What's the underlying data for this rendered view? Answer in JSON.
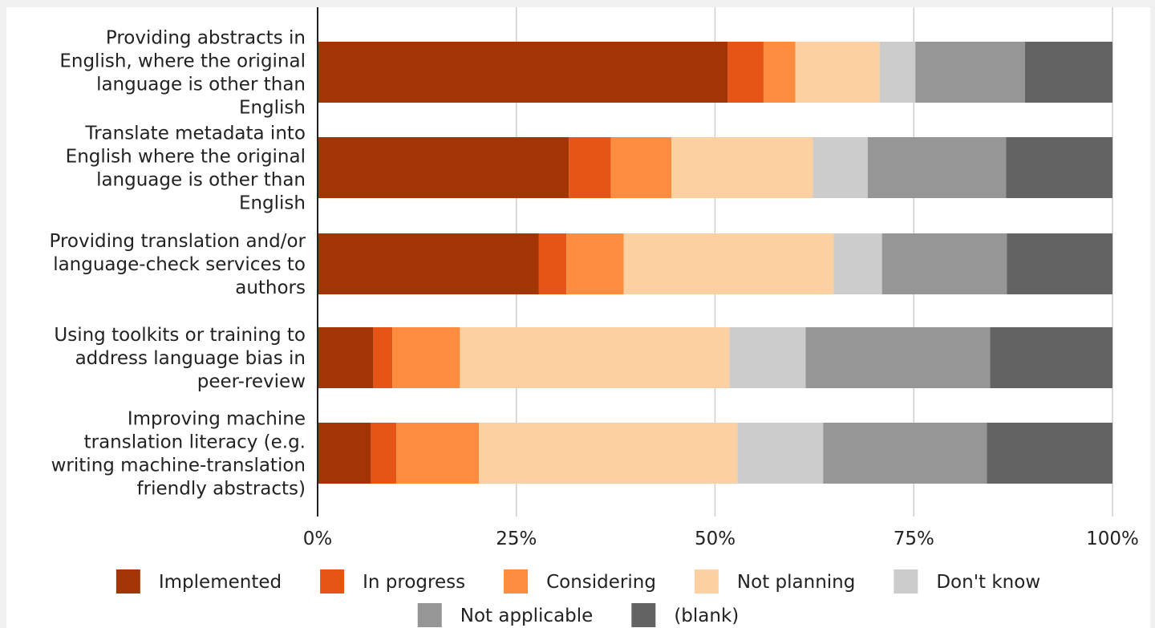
{
  "chart_data": {
    "type": "bar",
    "orientation": "horizontal",
    "stacked": true,
    "normalized": true,
    "title": "",
    "xlabel": "",
    "ylabel": "",
    "xlim": [
      0,
      100
    ],
    "grid": true,
    "legend_position": "bottom",
    "x_ticks": [
      "0%",
      "25%",
      "50%",
      "75%",
      "100%"
    ],
    "x_tick_values": [
      0,
      25,
      50,
      75,
      100
    ],
    "categories": [
      "Providing abstracts in English, where the original language is other than English",
      "Translate metadata into English where the original language is other than English",
      "Providing translation and/or language-check services to authors",
      "Using toolkits or training to address language bias in peer-review",
      "Improving machine translation literacy (e.g. writing machine-translation friendly abstracts)"
    ],
    "category_lines": [
      [
        "Providing abstracts in",
        "English, where the original",
        "language is other than",
        "English"
      ],
      [
        "Translate metadata into",
        "English where the original",
        "language is other than",
        "English"
      ],
      [
        "Providing translation and/or",
        "language-check services to",
        "authors"
      ],
      [
        "Using toolkits or training to",
        "address language bias in",
        "peer-review"
      ],
      [
        "Improving machine",
        "translation literacy (e.g.",
        "writing machine-translation",
        "friendly abstracts)"
      ]
    ],
    "series": [
      {
        "name": "Implemented",
        "color": "#a33504",
        "values": [
          51.6,
          31.6,
          27.8,
          7.0,
          6.7
        ]
      },
      {
        "name": "In progress",
        "color": "#e65516",
        "values": [
          4.5,
          5.3,
          3.5,
          2.4,
          3.2
        ]
      },
      {
        "name": "Considering",
        "color": "#fc8d3e",
        "values": [
          4.0,
          7.6,
          7.2,
          8.5,
          10.4
        ]
      },
      {
        "name": "Not planning",
        "color": "#fdd0a1",
        "values": [
          10.6,
          17.8,
          26.4,
          33.9,
          32.5
        ]
      },
      {
        "name": "Don't know",
        "color": "#cccccc",
        "values": [
          4.5,
          6.9,
          6.1,
          9.6,
          10.8
        ]
      },
      {
        "name": "Not applicable",
        "color": "#969696",
        "values": [
          13.8,
          17.4,
          15.7,
          23.2,
          20.6
        ]
      },
      {
        "name": "(blank)",
        "color": "#636363",
        "values": [
          11.0,
          13.4,
          13.3,
          15.4,
          15.8
        ]
      }
    ]
  }
}
